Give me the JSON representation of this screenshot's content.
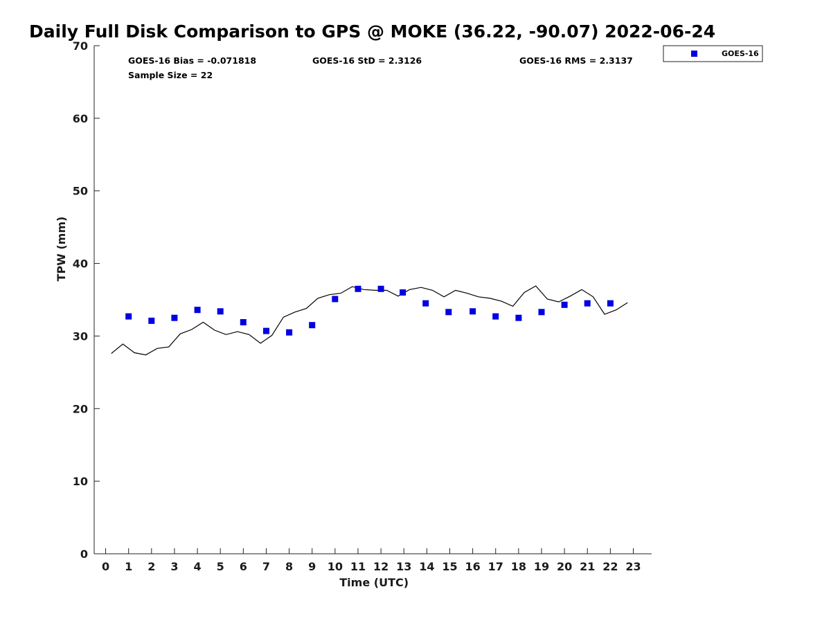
{
  "chart_data": {
    "type": "scatter",
    "title": "Daily Full Disk Comparison to GPS @ MOKE (36.22, -90.07) 2022-06-24",
    "xlabel": "Time (UTC)",
    "ylabel": "TPW (mm)",
    "xlim": [
      -0.5,
      23.8
    ],
    "ylim": [
      0,
      70
    ],
    "x_ticks": [
      "0",
      "1",
      "2",
      "3",
      "4",
      "5",
      "6",
      "7",
      "8",
      "9",
      "10",
      "11",
      "12",
      "13",
      "14",
      "15",
      "16",
      "17",
      "18",
      "19",
      "20",
      "21",
      "22",
      "23"
    ],
    "y_ticks": [
      "0",
      "10",
      "20",
      "30",
      "40",
      "50",
      "60",
      "70"
    ],
    "grid": false,
    "legend_position": "top-right",
    "stats": {
      "bias": "GOES-16 Bias = -0.071818",
      "std": "GOES-16 StD = 2.3126",
      "rms": "GOES-16 RMS = 2.3137",
      "sample": "Sample Size = 22"
    },
    "series": [
      {
        "name": "GOES-16",
        "kind": "scatter",
        "marker": "square",
        "color": "#0000e0",
        "points": [
          [
            1,
            32.7
          ],
          [
            2,
            32.1
          ],
          [
            3,
            32.5
          ],
          [
            4,
            33.6
          ],
          [
            5,
            33.4
          ],
          [
            6,
            31.9
          ],
          [
            7,
            30.7
          ],
          [
            8,
            30.5
          ],
          [
            9,
            31.5
          ],
          [
            10,
            35.1
          ],
          [
            11,
            36.5
          ],
          [
            12,
            36.5
          ],
          [
            12.95,
            36.0
          ],
          [
            13.95,
            34.5
          ],
          [
            14.95,
            33.3
          ],
          [
            16,
            33.4
          ],
          [
            17,
            32.7
          ],
          [
            18,
            32.5
          ],
          [
            19,
            33.3
          ],
          [
            20,
            34.3
          ],
          [
            21,
            34.5
          ],
          [
            22,
            34.5
          ]
        ]
      },
      {
        "kind": "line",
        "color": "#000000",
        "points": [
          [
            0.25,
            27.6
          ],
          [
            0.75,
            28.9
          ],
          [
            1.25,
            27.7
          ],
          [
            1.75,
            27.4
          ],
          [
            2.25,
            28.3
          ],
          [
            2.75,
            28.5
          ],
          [
            3.25,
            30.3
          ],
          [
            3.75,
            30.9
          ],
          [
            4.25,
            31.9
          ],
          [
            4.75,
            30.8
          ],
          [
            5.25,
            30.2
          ],
          [
            5.75,
            30.6
          ],
          [
            6.25,
            30.2
          ],
          [
            6.75,
            29.0
          ],
          [
            7.25,
            30.1
          ],
          [
            7.75,
            32.6
          ],
          [
            8.25,
            33.3
          ],
          [
            8.75,
            33.8
          ],
          [
            9.25,
            35.2
          ],
          [
            9.75,
            35.7
          ],
          [
            10.25,
            35.9
          ],
          [
            10.75,
            36.8
          ],
          [
            11.25,
            36.4
          ],
          [
            11.75,
            36.3
          ],
          [
            12.25,
            36.3
          ],
          [
            12.75,
            35.5
          ],
          [
            13.25,
            36.4
          ],
          [
            13.75,
            36.7
          ],
          [
            14.25,
            36.3
          ],
          [
            14.75,
            35.4
          ],
          [
            15.25,
            36.3
          ],
          [
            15.75,
            35.9
          ],
          [
            16.25,
            35.4
          ],
          [
            16.75,
            35.2
          ],
          [
            17.25,
            34.8
          ],
          [
            17.75,
            34.1
          ],
          [
            18.25,
            36.0
          ],
          [
            18.75,
            36.9
          ],
          [
            19.25,
            35.1
          ],
          [
            19.75,
            34.7
          ],
          [
            20.25,
            35.5
          ],
          [
            20.75,
            36.4
          ],
          [
            21.25,
            35.4
          ],
          [
            21.75,
            33.0
          ],
          [
            22.25,
            33.6
          ],
          [
            22.75,
            34.6
          ]
        ]
      }
    ]
  }
}
